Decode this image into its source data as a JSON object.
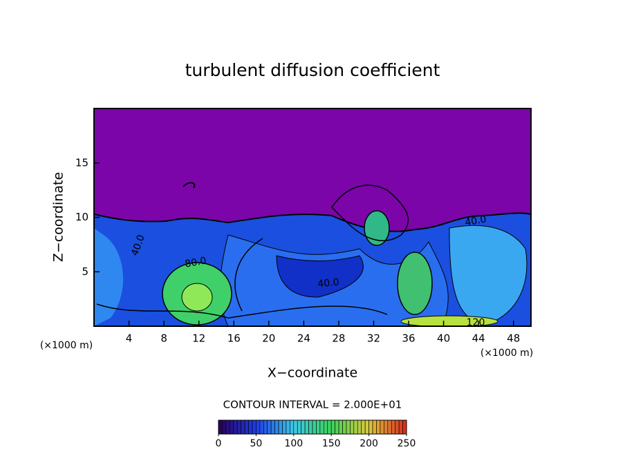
{
  "chart_data": {
    "type": "contour",
    "title": "turbulent diffusion coefficient",
    "x_label": "X−coordinate",
    "y_label": "Z−coordinate",
    "x_unit_labels": [
      "(×1000 m)",
      "(×1000 m)"
    ],
    "xlim": [
      0,
      50
    ],
    "xticks": [
      4,
      8,
      12,
      16,
      20,
      24,
      28,
      32,
      36,
      40,
      44,
      48
    ],
    "ylim": [
      0,
      20
    ],
    "yticks": [
      5,
      10,
      15
    ],
    "contour_labels": [
      "40.0",
      "80.0",
      "40.0",
      "40.0",
      "120"
    ],
    "annotation": "CONTOUR INTERVAL = 2.000E+01",
    "colorbar": {
      "lim": [
        0,
        250
      ],
      "ticks": [
        0,
        50,
        100,
        150,
        200,
        250
      ]
    }
  }
}
